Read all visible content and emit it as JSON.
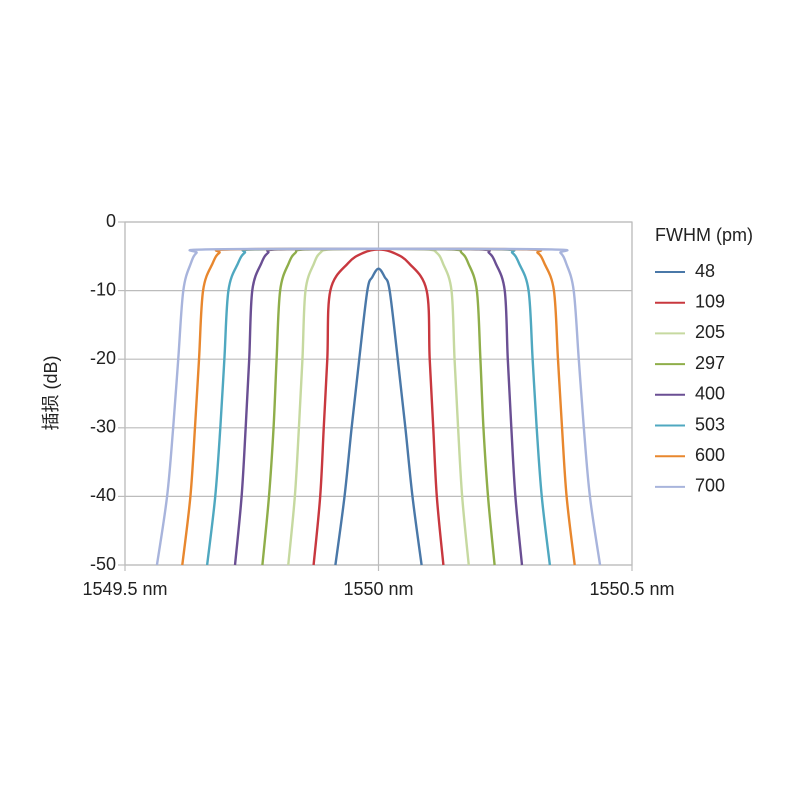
{
  "chart_data": {
    "type": "line",
    "y_label": "插损 (dB)",
    "legend_title": "FWHM (pm)",
    "legend": "right",
    "grid": true,
    "xlim": [
      1549.5,
      1550.5
    ],
    "xticks": [
      {
        "value": 1549.5,
        "label": "1549.5 nm"
      },
      {
        "value": 1550,
        "label": "1550 nm"
      },
      {
        "value": 1550.5,
        "label": "1550.5 nm"
      }
    ],
    "ylim": [
      -50,
      0
    ],
    "yticks": [
      0,
      -10,
      -20,
      -30,
      -40,
      -50
    ],
    "series": [
      {
        "name": "48",
        "color": "#4a78a8",
        "x": [
          1549.915,
          1549.933,
          1549.947,
          1549.962,
          1549.978,
          1549.988,
          1550,
          1550.012,
          1550.022,
          1550.038,
          1550.053,
          1550.067,
          1550.085
        ],
        "values": [
          -50,
          -40,
          -30,
          -20,
          -10,
          -8,
          -6.8,
          -8,
          -10,
          -20,
          -30,
          -40,
          -50
        ]
      },
      {
        "name": "109",
        "color": "#c8383f",
        "x": [
          1549.872,
          1549.885,
          1549.892,
          1549.899,
          1549.905,
          1549.94,
          1549.97,
          1550,
          1550.03,
          1550.06,
          1550.095,
          1550.101,
          1550.108,
          1550.115,
          1550.128
        ],
        "values": [
          -50,
          -40,
          -30,
          -20,
          -10,
          -6,
          -4.5,
          -4,
          -4.5,
          -6,
          -10,
          -20,
          -30,
          -40,
          -50
        ]
      },
      {
        "name": "205",
        "color": "#c6d9a0",
        "x": [
          1549.822,
          1549.835,
          1549.843,
          1549.85,
          1549.856,
          1549.873,
          1549.885,
          1549.905,
          1550,
          1550.095,
          1550.115,
          1550.127,
          1550.144,
          1550.15,
          1550.157,
          1550.165,
          1550.178
        ],
        "values": [
          -50,
          -40,
          -30,
          -20,
          -10,
          -6,
          -4.5,
          -4,
          -3.9,
          -4,
          -4.5,
          -6,
          -10,
          -20,
          -30,
          -40,
          -50
        ]
      },
      {
        "name": "297",
        "color": "#8fae4a",
        "x": [
          1549.771,
          1549.784,
          1549.793,
          1549.799,
          1549.806,
          1549.823,
          1549.836,
          1549.856,
          1550,
          1550.144,
          1550.164,
          1550.177,
          1550.194,
          1550.201,
          1550.207,
          1550.216,
          1550.229
        ],
        "values": [
          -50,
          -40,
          -30,
          -20,
          -10,
          -6,
          -4.5,
          -4,
          -3.9,
          -4,
          -4.5,
          -6,
          -10,
          -20,
          -30,
          -40,
          -50
        ]
      },
      {
        "name": "400",
        "color": "#6a4f93",
        "x": [
          1549.717,
          1549.73,
          1549.738,
          1549.745,
          1549.751,
          1549.769,
          1549.782,
          1549.802,
          1550,
          1550.198,
          1550.218,
          1550.231,
          1550.249,
          1550.255,
          1550.262,
          1550.27,
          1550.283
        ],
        "values": [
          -50,
          -40,
          -30,
          -20,
          -10,
          -6,
          -4.5,
          -4,
          -3.9,
          -4,
          -4.5,
          -6,
          -10,
          -20,
          -30,
          -40,
          -50
        ]
      },
      {
        "name": "503",
        "color": "#4fa8c0",
        "x": [
          1549.662,
          1549.678,
          1549.688,
          1549.696,
          1549.704,
          1549.723,
          1549.736,
          1549.757,
          1550,
          1550.243,
          1550.264,
          1550.277,
          1550.296,
          1550.304,
          1550.312,
          1550.322,
          1550.338
        ],
        "values": [
          -50,
          -40,
          -30,
          -20,
          -10,
          -6,
          -4.5,
          -4,
          -3.9,
          -4,
          -4.5,
          -6,
          -10,
          -20,
          -30,
          -40,
          -50
        ]
      },
      {
        "name": "600",
        "color": "#e8872e",
        "x": [
          1549.613,
          1549.629,
          1549.638,
          1549.646,
          1549.654,
          1549.673,
          1549.686,
          1549.708,
          1550,
          1550.292,
          1550.314,
          1550.327,
          1550.346,
          1550.354,
          1550.362,
          1550.371,
          1550.387
        ],
        "values": [
          -50,
          -40,
          -30,
          -20,
          -10,
          -6,
          -4.5,
          -4,
          -3.9,
          -4,
          -4.5,
          -6,
          -10,
          -20,
          -30,
          -40,
          -50
        ]
      },
      {
        "name": "700",
        "color": "#a8b4dc",
        "x": [
          1549.563,
          1549.583,
          1549.595,
          1549.605,
          1549.615,
          1549.63,
          1549.641,
          1549.658,
          1550,
          1550.342,
          1550.359,
          1550.37,
          1550.385,
          1550.395,
          1550.405,
          1550.417,
          1550.437
        ],
        "values": [
          -50,
          -40,
          -30,
          -20,
          -10,
          -6,
          -4.5,
          -4,
          -3.9,
          -4,
          -4.5,
          -6,
          -10,
          -20,
          -30,
          -40,
          -50
        ]
      }
    ]
  }
}
